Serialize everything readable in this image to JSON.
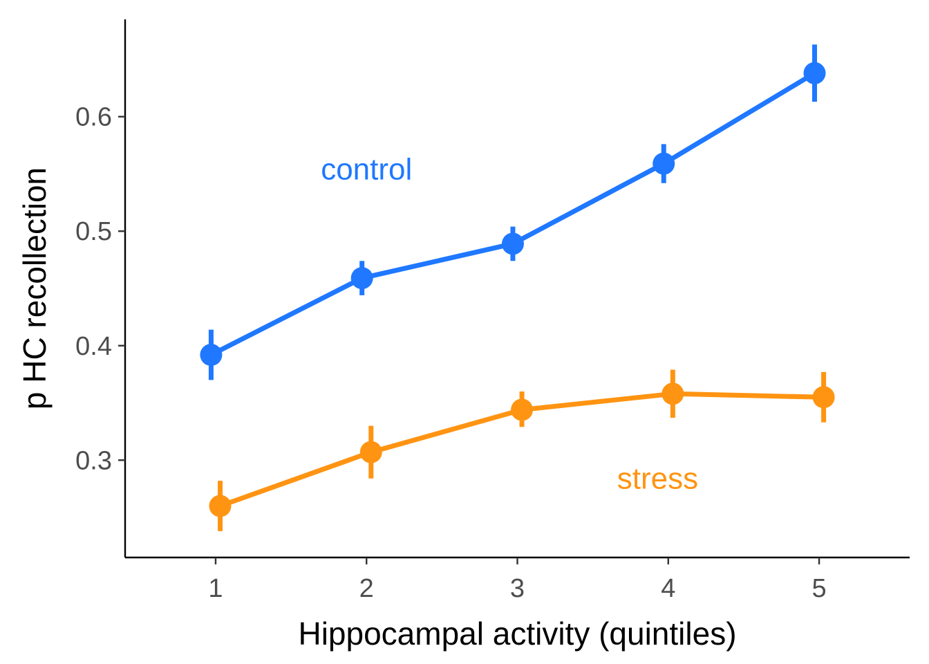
{
  "chart_data": {
    "type": "line",
    "xlabel": "Hippocampal activity (quintiles)",
    "ylabel": "p HC recollection",
    "x": [
      1,
      2,
      3,
      4,
      5
    ],
    "xlim": [
      0.4,
      5.6
    ],
    "ylim": [
      0.215,
      0.685
    ],
    "x_ticks": [
      1,
      2,
      3,
      4,
      5
    ],
    "y_ticks": [
      0.3,
      0.4,
      0.5,
      0.6
    ],
    "y_tick_labels": [
      "0.3",
      "0.4",
      "0.5",
      "0.6"
    ],
    "grid": false,
    "legend": "none (direct labels)",
    "series": [
      {
        "name": "control",
        "color": "#1f78ff",
        "x_positions": [
          0.97,
          1.97,
          2.97,
          3.97,
          4.97
        ],
        "values": [
          0.392,
          0.459,
          0.489,
          0.559,
          0.638
        ],
        "error_low": [
          0.37,
          0.444,
          0.474,
          0.542,
          0.613
        ],
        "error_high": [
          0.414,
          0.474,
          0.504,
          0.576,
          0.663
        ]
      },
      {
        "name": "stress",
        "color": "#ff9412",
        "x_positions": [
          1.03,
          2.03,
          3.03,
          4.03,
          5.03
        ],
        "values": [
          0.26,
          0.307,
          0.344,
          0.358,
          0.355
        ],
        "error_low": [
          0.238,
          0.284,
          0.329,
          0.337,
          0.333
        ],
        "error_high": [
          0.282,
          0.33,
          0.36,
          0.379,
          0.377
        ]
      }
    ],
    "annotations": [
      {
        "text": "control",
        "x": 2.0,
        "y": 0.545,
        "color": "#1f78ff"
      },
      {
        "text": "stress",
        "x": 3.93,
        "y": 0.275,
        "color": "#ff9412"
      }
    ]
  }
}
